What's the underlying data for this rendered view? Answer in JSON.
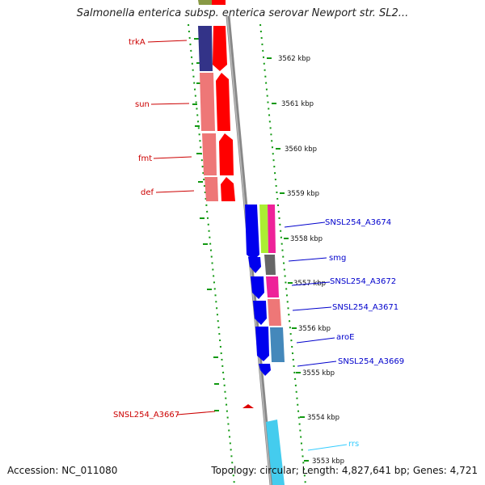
{
  "title": "Salmonella enterica subsp. enterica serovar Newport str. SL2...",
  "footer": {
    "accession": "Accession: NC_011080",
    "stats": "Topology: circular; Length: 4,827,641 bp; Genes: 4,721"
  },
  "ruler": {
    "unit": "kbp",
    "ticks": [
      "3562 kbp",
      "3561 kbp",
      "3560 kbp",
      "3559 kbp",
      "3558 kbp",
      "3557 kbp",
      "3556 kbp",
      "3555 kbp",
      "3554 kbp",
      "3553 kbp"
    ]
  },
  "genes": {
    "reverse_strand": [
      {
        "name": "trkA",
        "color": "#dd0000"
      },
      {
        "name": "sun",
        "color": "#dd0000"
      },
      {
        "name": "fmt",
        "color": "#dd0000"
      },
      {
        "name": "def",
        "color": "#dd0000"
      },
      {
        "name": "SNSL254_A3667",
        "color": "#dd0000"
      }
    ],
    "forward_strand": [
      {
        "name": "SNSL254_A3674",
        "color": "#0000cc"
      },
      {
        "name": "smg",
        "color": "#0000cc"
      },
      {
        "name": "SNSL254_A3672",
        "color": "#0000cc"
      },
      {
        "name": "SNSL254_A3671",
        "color": "#0000cc"
      },
      {
        "name": "aroE",
        "color": "#0000cc"
      },
      {
        "name": "SNSL254_A3669",
        "color": "#0000cc"
      },
      {
        "name": "rrs",
        "color": "#33ccff"
      }
    ]
  },
  "colors": {
    "backbone": "#888888",
    "cds_reverse": "#ff0000",
    "cds_forward": "#0000ee",
    "dots": "#119911"
  }
}
